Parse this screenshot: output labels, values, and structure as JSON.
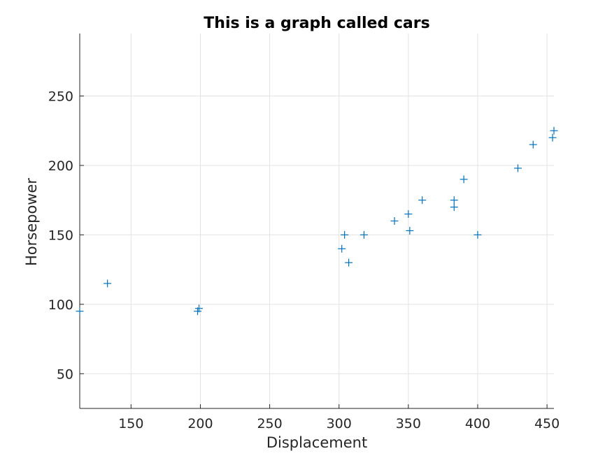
{
  "chart_data": {
    "type": "scatter",
    "title": "This is a graph called cars",
    "xlabel": "Displacement",
    "ylabel": "Horsepower",
    "xlim": [
      113,
      455
    ],
    "ylim": [
      25,
      295
    ],
    "xticks": [
      150,
      200,
      250,
      300,
      350,
      400,
      450
    ],
    "yticks": [
      50,
      100,
      150,
      200,
      250
    ],
    "grid": true,
    "marker": "+",
    "marker_color": "#0072BD",
    "series": [
      {
        "x": [
          113,
          133,
          198,
          199,
          302,
          304,
          307,
          318,
          340,
          350,
          351,
          360,
          383,
          383,
          390,
          400,
          429,
          440,
          454,
          455
        ],
        "y": [
          95,
          115,
          95,
          97,
          140,
          150,
          130,
          150,
          160,
          165,
          153,
          175,
          170,
          175,
          190,
          150,
          198,
          215,
          220,
          225
        ]
      }
    ]
  }
}
